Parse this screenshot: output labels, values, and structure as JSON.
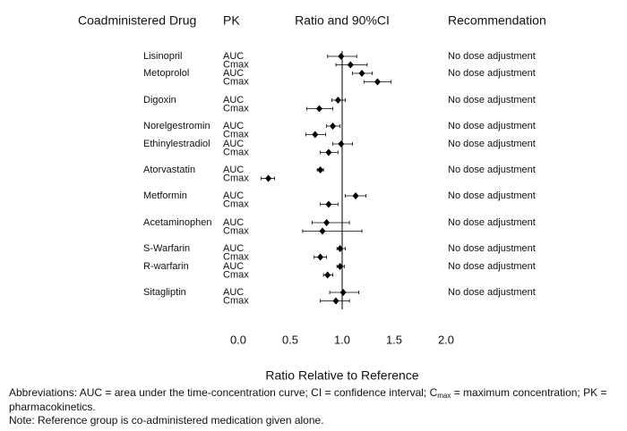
{
  "chart_data": {
    "type": "forest",
    "headers": {
      "drug": "Coadministered Drug",
      "pk": "PK",
      "ratio": "Ratio and 90%CI",
      "recommendation": "Recommendation"
    },
    "xlabel": "Ratio Relative to Reference",
    "xlim": [
      0,
      2
    ],
    "xticks": [
      {
        "value": 0,
        "label": "0.0"
      },
      0.5,
      {
        "value": 1,
        "label": "1.0"
      },
      1.5,
      {
        "value": 2,
        "label": "2.0"
      }
    ],
    "reference_line": 1,
    "color": "#000000",
    "drugs": [
      {
        "name": "Lisinopril",
        "recommendation": "No dose adjustment",
        "rows": [
          {
            "pk": "AUC",
            "value": 0.99,
            "ci_low": 0.86,
            "ci_high": 1.14
          },
          {
            "pk": "Cmax",
            "value": 1.08,
            "ci_low": 0.94,
            "ci_high": 1.24
          }
        ]
      },
      {
        "name": "Metoprolol",
        "recommendation": "No dose adjustment",
        "rows": [
          {
            "pk": "AUC",
            "value": 1.19,
            "ci_low": 1.1,
            "ci_high": 1.29
          },
          {
            "pk": "Cmax",
            "value": 1.34,
            "ci_low": 1.21,
            "ci_high": 1.47
          }
        ]
      },
      {
        "name": "Digoxin",
        "recommendation": "No dose adjustment",
        "rows": [
          {
            "pk": "AUC",
            "value": 0.96,
            "ci_low": 0.9,
            "ci_high": 1.03
          },
          {
            "pk": "Cmax",
            "value": 0.78,
            "ci_low": 0.66,
            "ci_high": 0.91
          }
        ]
      },
      {
        "name": "Norelgestromin",
        "recommendation": "No dose adjustment",
        "rows": [
          {
            "pk": "AUC",
            "value": 0.91,
            "ci_low": 0.85,
            "ci_high": 0.98
          },
          {
            "pk": "Cmax",
            "value": 0.74,
            "ci_low": 0.65,
            "ci_high": 0.84
          }
        ]
      },
      {
        "name": "Ethinylestradiol",
        "recommendation": "No dose adjustment",
        "rows": [
          {
            "pk": "AUC",
            "value": 0.99,
            "ci_low": 0.91,
            "ci_high": 1.1
          },
          {
            "pk": "Cmax",
            "value": 0.87,
            "ci_low": 0.79,
            "ci_high": 0.96
          }
        ]
      },
      {
        "name": "Atorvastatin",
        "recommendation": "No dose adjustment",
        "rows": [
          {
            "pk": "AUC",
            "value": 0.79,
            "ci_low": 0.76,
            "ci_high": 0.82
          },
          {
            "pk": "Cmax",
            "value": 0.29,
            "ci_low": 0.22,
            "ci_high": 0.35
          }
        ]
      },
      {
        "name": "Metformin",
        "recommendation": "No dose adjustment",
        "rows": [
          {
            "pk": "AUC",
            "value": 1.13,
            "ci_low": 1.03,
            "ci_high": 1.23
          },
          {
            "pk": "Cmax",
            "value": 0.87,
            "ci_low": 0.79,
            "ci_high": 0.96
          }
        ]
      },
      {
        "name": "Acetaminophen",
        "recommendation": "No dose adjustment",
        "rows": [
          {
            "pk": "AUC",
            "value": 0.85,
            "ci_low": 0.71,
            "ci_high": 1.07
          },
          {
            "pk": "Cmax",
            "value": 0.81,
            "ci_low": 0.62,
            "ci_high": 1.19
          }
        ]
      },
      {
        "name": "S-Warfarin",
        "recommendation": "No dose adjustment",
        "rows": [
          {
            "pk": "AUC",
            "value": 0.98,
            "ci_low": 0.95,
            "ci_high": 1.03
          },
          {
            "pk": "Cmax",
            "value": 0.79,
            "ci_low": 0.73,
            "ci_high": 0.85
          }
        ]
      },
      {
        "name": "R-warfarin",
        "recommendation": "No dose adjustment",
        "rows": [
          {
            "pk": "AUC",
            "value": 0.98,
            "ci_low": 0.95,
            "ci_high": 1.02
          },
          {
            "pk": "Cmax",
            "value": 0.86,
            "ci_low": 0.82,
            "ci_high": 0.91
          }
        ]
      },
      {
        "name": "Sitagliptin",
        "recommendation": "No dose adjustment",
        "rows": [
          {
            "pk": "AUC",
            "value": 1.01,
            "ci_low": 0.88,
            "ci_high": 1.16
          },
          {
            "pk": "Cmax",
            "value": 0.94,
            "ci_low": 0.79,
            "ci_high": 1.07
          }
        ]
      }
    ],
    "footnotes": {
      "abbrev_start": "Abbreviations: AUC = area under the time-concentration curve; CI = confidence interval; C",
      "abbrev_sub": "max",
      "abbrev_end": " = maximum concentration; PK = pharmacokinetics.",
      "note": "Note: Reference group is co-administered medication given alone."
    }
  }
}
